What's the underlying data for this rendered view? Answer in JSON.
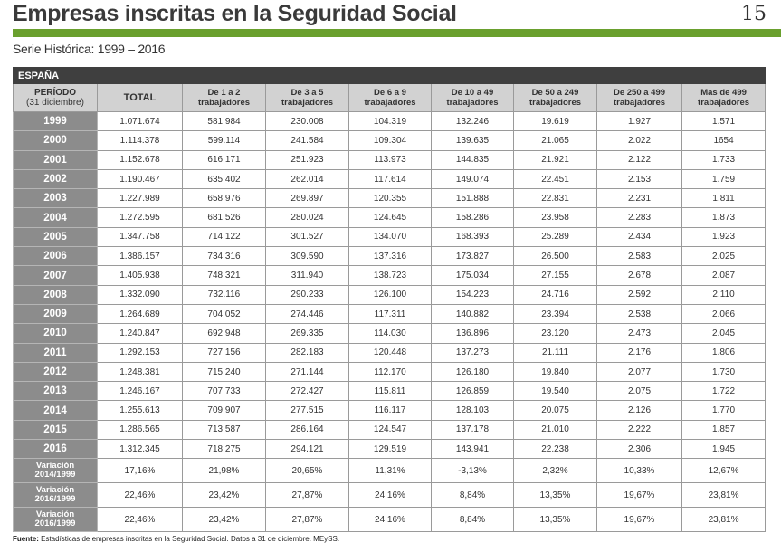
{
  "header": {
    "title": "Empresas inscritas en la Seguridad Social",
    "page_number": "15",
    "subtitle": "Serie Histórica: 1999 – 2016"
  },
  "table": {
    "region": "ESPAÑA",
    "period_header": "PERÍODO",
    "period_sub": "(31 diciembre)",
    "columns": [
      "TOTAL",
      "De 1 a 2 trabajadores",
      "De 3 a 5 trabajadores",
      "De 6 a 9 trabajadores",
      "De 10 a 49 trabajadores",
      "De 50 a 249 trabajadores",
      "De 250 a 499 trabajadores",
      "Mas de 499 trabajadores"
    ],
    "rows": [
      {
        "label": "1999",
        "values": [
          "1.071.674",
          "581.984",
          "230.008",
          "104.319",
          "132.246",
          "19.619",
          "1.927",
          "1.571"
        ]
      },
      {
        "label": "2000",
        "values": [
          "1.114.378",
          "599.114",
          "241.584",
          "109.304",
          "139.635",
          "21.065",
          "2.022",
          "1654"
        ]
      },
      {
        "label": "2001",
        "values": [
          "1.152.678",
          "616.171",
          "251.923",
          "113.973",
          "144.835",
          "21.921",
          "2.122",
          "1.733"
        ]
      },
      {
        "label": "2002",
        "values": [
          "1.190.467",
          "635.402",
          "262.014",
          "117.614",
          "149.074",
          "22.451",
          "2.153",
          "1.759"
        ]
      },
      {
        "label": "2003",
        "values": [
          "1.227.989",
          "658.976",
          "269.897",
          "120.355",
          "151.888",
          "22.831",
          "2.231",
          "1.811"
        ]
      },
      {
        "label": "2004",
        "values": [
          "1.272.595",
          "681.526",
          "280.024",
          "124.645",
          "158.286",
          "23.958",
          "2.283",
          "1.873"
        ]
      },
      {
        "label": "2005",
        "values": [
          "1.347.758",
          "714.122",
          "301.527",
          "134.070",
          "168.393",
          "25.289",
          "2.434",
          "1.923"
        ]
      },
      {
        "label": "2006",
        "values": [
          "1.386.157",
          "734.316",
          "309.590",
          "137.316",
          "173.827",
          "26.500",
          "2.583",
          "2.025"
        ]
      },
      {
        "label": "2007",
        "values": [
          "1.405.938",
          "748.321",
          "311.940",
          "138.723",
          "175.034",
          "27.155",
          "2.678",
          "2.087"
        ]
      },
      {
        "label": "2008",
        "values": [
          "1.332.090",
          "732.116",
          "290.233",
          "126.100",
          "154.223",
          "24.716",
          "2.592",
          "2.110"
        ]
      },
      {
        "label": "2009",
        "values": [
          "1.264.689",
          "704.052",
          "274.446",
          "117.311",
          "140.882",
          "23.394",
          "2.538",
          "2.066"
        ]
      },
      {
        "label": "2010",
        "values": [
          "1.240.847",
          "692.948",
          "269.335",
          "114.030",
          "136.896",
          "23.120",
          "2.473",
          "2.045"
        ]
      },
      {
        "label": "2011",
        "values": [
          "1.292.153",
          "727.156",
          "282.183",
          "120.448",
          "137.273",
          "21.111",
          "2.176",
          "1.806"
        ]
      },
      {
        "label": "2012",
        "values": [
          "1.248.381",
          "715.240",
          "271.144",
          "112.170",
          "126.180",
          "19.840",
          "2.077",
          "1.730"
        ]
      },
      {
        "label": "2013",
        "values": [
          "1.246.167",
          "707.733",
          "272.427",
          "115.811",
          "126.859",
          "19.540",
          "2.075",
          "1.722"
        ]
      },
      {
        "label": "2014",
        "values": [
          "1.255.613",
          "709.907",
          "277.515",
          "116.117",
          "128.103",
          "20.075",
          "2.126",
          "1.770"
        ]
      },
      {
        "label": "2015",
        "values": [
          "1.286.565",
          "713.587",
          "286.164",
          "124.547",
          "137.178",
          "21.010",
          "2.222",
          "1.857"
        ]
      },
      {
        "label": "2016",
        "values": [
          "1.312.345",
          "718.275",
          "294.121",
          "129.519",
          "143.941",
          "22.238",
          "2.306",
          "1.945"
        ]
      }
    ],
    "variations": [
      {
        "label_top": "Variación",
        "label_bottom": "2014/1999",
        "values": [
          "17,16%",
          "21,98%",
          "20,65%",
          "11,31%",
          "-3,13%",
          "2,32%",
          "10,33%",
          "12,67%"
        ]
      },
      {
        "label_top": "Variación",
        "label_bottom": "2016/1999",
        "values": [
          "22,46%",
          "23,42%",
          "27,87%",
          "24,16%",
          "8,84%",
          "13,35%",
          "19,67%",
          "23,81%"
        ]
      },
      {
        "label_top": "Variación",
        "label_bottom": "2016/1999",
        "values": [
          "22,46%",
          "23,42%",
          "27,87%",
          "24,16%",
          "8,84%",
          "13,35%",
          "19,67%",
          "23,81%"
        ]
      }
    ]
  },
  "source": {
    "label": "Fuente:",
    "text": " Estadísticas de empresas inscritas en la Seguridad Social. Datos a 31 de diciembre. MEySS."
  }
}
